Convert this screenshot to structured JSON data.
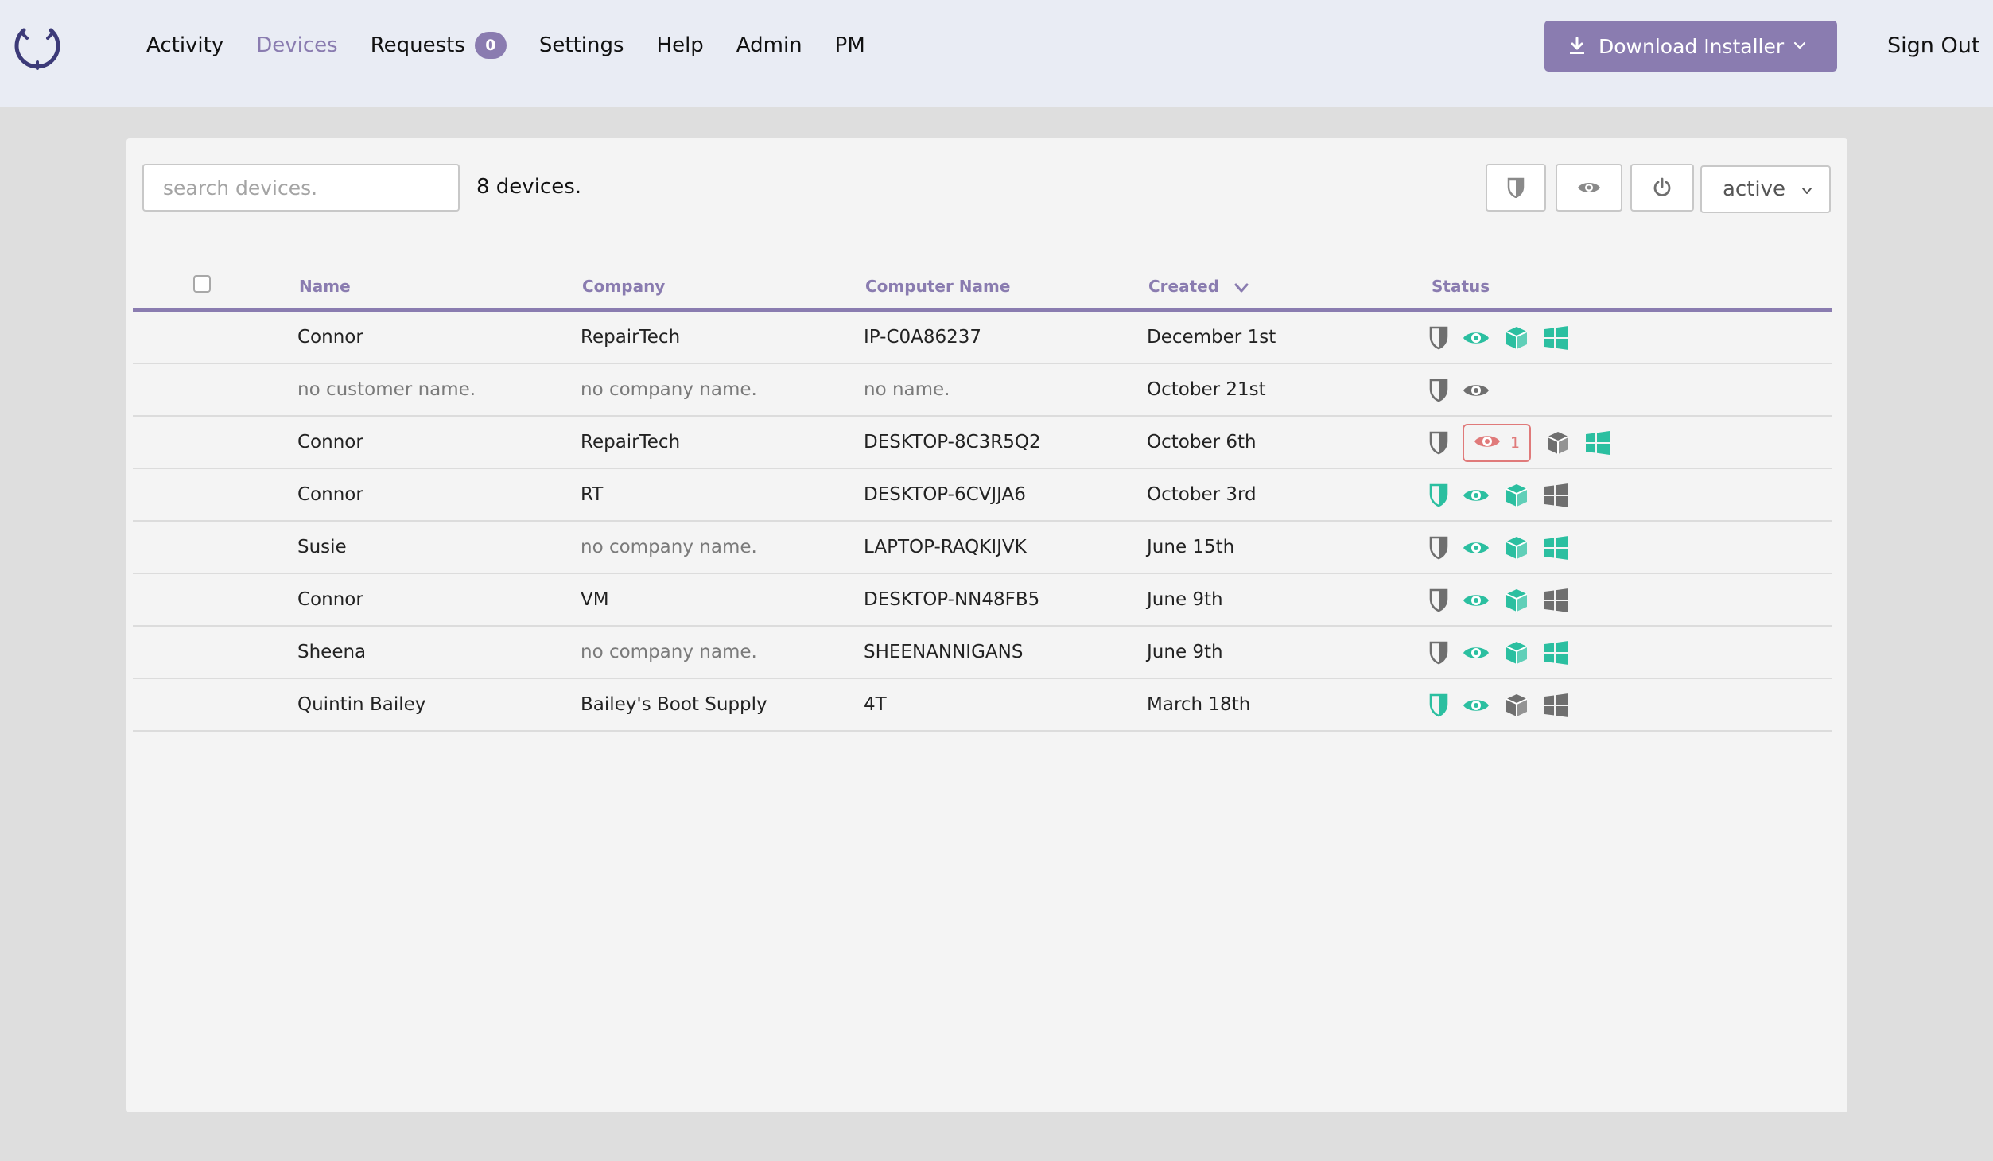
{
  "nav": {
    "items": [
      {
        "label": "Activity",
        "active": false
      },
      {
        "label": "Devices",
        "active": true
      },
      {
        "label": "Requests",
        "active": false
      },
      {
        "label": "Settings",
        "active": false
      },
      {
        "label": "Help",
        "active": false
      },
      {
        "label": "Admin",
        "active": false
      },
      {
        "label": "PM",
        "active": false
      }
    ],
    "requests_badge": "0",
    "download_label": "Download Installer",
    "signout_label": "Sign Out"
  },
  "toolbar": {
    "search_placeholder": "search devices.",
    "search_value": "",
    "count_text": "8 devices.",
    "filter_value": "active"
  },
  "table": {
    "headers": [
      "Name",
      "Company",
      "Computer Name",
      "Created",
      "Status"
    ],
    "sort_column": "Created",
    "rows": [
      {
        "name": "Connor",
        "company": "RepairTech",
        "computer": "IP-C0A86237",
        "created": "December 1st",
        "status": {
          "shield": "gray",
          "eye": "teal",
          "eye_alert": "",
          "box": "teal",
          "windows": "teal"
        }
      },
      {
        "name": "no customer name.",
        "company": "no company name.",
        "computer": "no name.",
        "created": "October 21st",
        "status": {
          "shield": "gray",
          "eye": "gray",
          "eye_alert": "",
          "box": "",
          "windows": ""
        }
      },
      {
        "name": "Connor",
        "company": "RepairTech",
        "computer": "DESKTOP-8C3R5Q2",
        "created": "October 6th",
        "status": {
          "shield": "gray",
          "eye": "red",
          "eye_alert": "1",
          "box": "gray",
          "windows": "teal"
        }
      },
      {
        "name": "Connor",
        "company": "RT",
        "computer": "DESKTOP-6CVJJA6",
        "created": "October 3rd",
        "status": {
          "shield": "teal",
          "eye": "teal",
          "eye_alert": "",
          "box": "teal",
          "windows": "gray"
        }
      },
      {
        "name": "Susie",
        "company": "no company name.",
        "computer": "LAPTOP-RAQKIJVK",
        "created": "June 15th",
        "status": {
          "shield": "gray",
          "eye": "teal",
          "eye_alert": "",
          "box": "teal",
          "windows": "teal"
        }
      },
      {
        "name": "Connor",
        "company": "VM",
        "computer": "DESKTOP-NN48FB5",
        "created": "June 9th",
        "status": {
          "shield": "gray",
          "eye": "teal",
          "eye_alert": "",
          "box": "teal",
          "windows": "gray"
        }
      },
      {
        "name": "Sheena",
        "company": "no company name.",
        "computer": "SHEENANNIGANS",
        "created": "June 9th",
        "status": {
          "shield": "gray",
          "eye": "teal",
          "eye_alert": "",
          "box": "teal",
          "windows": "teal"
        }
      },
      {
        "name": "Quintin Bailey",
        "company": "Bailey's Boot Supply",
        "computer": "4T",
        "created": "March 18th",
        "status": {
          "shield": "teal",
          "eye": "teal",
          "eye_alert": "",
          "box": "gray",
          "windows": "gray"
        }
      }
    ]
  },
  "colors": {
    "accent": "#8a7cb0",
    "teal": "#2bbfa0",
    "gray": "#6f6f6f",
    "alert": "#e07a7a",
    "muted_text": "#7a7a7a"
  },
  "icons": {
    "logo": "logo-icon",
    "download": "download-icon",
    "caret": "chevron-down-icon",
    "shield": "shield-icon",
    "eye": "eye-icon",
    "power": "power-icon",
    "box": "cube-icon",
    "windows": "windows-icon"
  }
}
